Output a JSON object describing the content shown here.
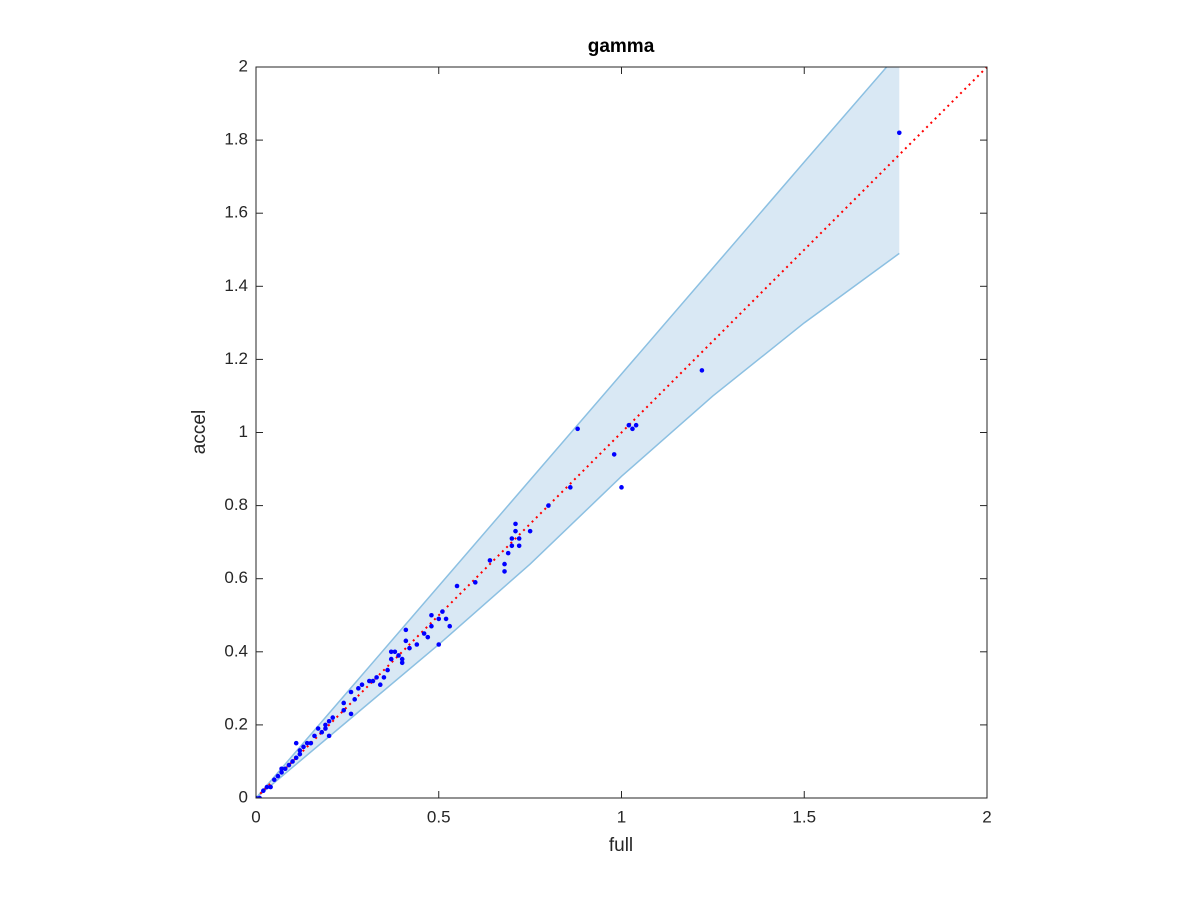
{
  "chart_data": {
    "type": "scatter",
    "title": "gamma",
    "x_label": "full",
    "y_label": "accel",
    "xlim": [
      0,
      2
    ],
    "ylim": [
      0,
      2
    ],
    "xticks": [
      0,
      0.5,
      1,
      1.5,
      2
    ],
    "yticks": [
      0,
      0.2,
      0.4,
      0.6,
      0.8,
      1,
      1.2,
      1.4,
      1.6,
      1.8,
      2
    ],
    "band": {
      "x": [
        0,
        0.25,
        0.5,
        0.75,
        1.0,
        1.25,
        1.5,
        1.76
      ],
      "upper": [
        0,
        0.29,
        0.58,
        0.87,
        1.16,
        1.45,
        1.74,
        2.04
      ],
      "lower": [
        0,
        0.21,
        0.42,
        0.64,
        0.88,
        1.1,
        1.3,
        1.49
      ],
      "color": "#d9e8f4",
      "edge_color": "#8cc0e2"
    },
    "reference_line": {
      "x": [
        0,
        2
      ],
      "y": [
        0,
        2
      ],
      "color": "#ff0000"
    },
    "points": {
      "color": "#0000ff",
      "x": [
        0,
        0.01,
        0.02,
        0.03,
        0.04,
        0.05,
        0.06,
        0.07,
        0.07,
        0.08,
        0.09,
        0.1,
        0.11,
        0.11,
        0.12,
        0.12,
        0.13,
        0.14,
        0.15,
        0.16,
        0.17,
        0.18,
        0.19,
        0.19,
        0.2,
        0.21,
        0.2,
        0.24,
        0.24,
        0.26,
        0.26,
        0.27,
        0.28,
        0.29,
        0.31,
        0.32,
        0.33,
        0.34,
        0.35,
        0.36,
        0.37,
        0.37,
        0.38,
        0.39,
        0.4,
        0.4,
        0.41,
        0.41,
        0.42,
        0.44,
        0.46,
        0.47,
        0.48,
        0.48,
        0.5,
        0.5,
        0.51,
        0.52,
        0.53,
        0.55,
        0.6,
        0.64,
        0.68,
        0.68,
        0.69,
        0.7,
        0.7,
        0.71,
        0.71,
        0.72,
        0.72,
        0.75,
        0.8,
        0.86,
        0.88,
        0.98,
        1.0,
        1.02,
        1.03,
        1.04,
        1.22,
        1.76
      ],
      "y": [
        0,
        0,
        0.02,
        0.03,
        0.03,
        0.05,
        0.06,
        0.07,
        0.08,
        0.08,
        0.09,
        0.1,
        0.15,
        0.11,
        0.12,
        0.13,
        0.14,
        0.15,
        0.15,
        0.17,
        0.19,
        0.18,
        0.19,
        0.2,
        0.21,
        0.22,
        0.17,
        0.26,
        0.24,
        0.23,
        0.29,
        0.27,
        0.3,
        0.31,
        0.32,
        0.32,
        0.33,
        0.31,
        0.33,
        0.35,
        0.38,
        0.4,
        0.4,
        0.39,
        0.37,
        0.38,
        0.43,
        0.46,
        0.41,
        0.42,
        0.45,
        0.44,
        0.47,
        0.5,
        0.42,
        0.49,
        0.51,
        0.49,
        0.47,
        0.58,
        0.59,
        0.65,
        0.62,
        0.64,
        0.67,
        0.69,
        0.71,
        0.75,
        0.73,
        0.69,
        0.71,
        0.73,
        0.8,
        0.85,
        1.01,
        0.94,
        0.85,
        1.02,
        1.01,
        1.02,
        1.17,
        1.82
      ]
    }
  }
}
